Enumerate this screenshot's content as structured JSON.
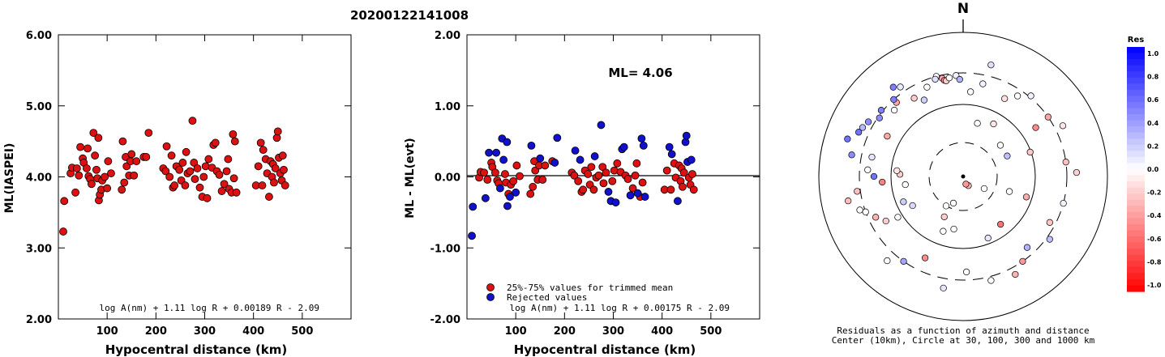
{
  "figure_title": "20200122141008",
  "colors": {
    "red": "#dd1111",
    "blue": "#1111cc",
    "axis": "#000000"
  },
  "chart_data": [
    {
      "type": "scatter",
      "xlabel": "Hypocentral distance (km)",
      "ylabel": "ML(IASPEI)",
      "xlim": [
        0,
        600
      ],
      "ylim": [
        2.0,
        6.0
      ],
      "yticks": [
        "2.00",
        "3.00",
        "4.00",
        "5.00",
        "6.00"
      ],
      "xticks": [
        "100",
        "200",
        "300",
        "400",
        "500"
      ],
      "formula": "log A(nm) + 1.11 log R + 0.00189 R - 2.09",
      "points": [
        [
          10,
          3.23
        ],
        [
          12,
          3.66
        ],
        [
          25,
          4.05
        ],
        [
          28,
          4.13
        ],
        [
          35,
          3.78
        ],
        [
          38,
          4.12
        ],
        [
          42,
          4.02
        ],
        [
          45,
          4.42
        ],
        [
          50,
          4.26
        ],
        [
          52,
          4.2
        ],
        [
          58,
          4.12
        ],
        [
          60,
          4.4
        ],
        [
          62,
          4.01
        ],
        [
          65,
          3.97
        ],
        [
          68,
          3.9
        ],
        [
          72,
          4.62
        ],
        [
          75,
          4.3
        ],
        [
          78,
          4.1
        ],
        [
          80,
          3.98
        ],
        [
          82,
          4.55
        ],
        [
          83,
          3.67
        ],
        [
          85,
          3.75
        ],
        [
          88,
          3.82
        ],
        [
          90,
          3.95
        ],
        [
          95,
          4.0
        ],
        [
          100,
          3.84
        ],
        [
          102,
          4.22
        ],
        [
          108,
          4.05
        ],
        [
          130,
          3.82
        ],
        [
          132,
          4.5
        ],
        [
          135,
          3.92
        ],
        [
          138,
          4.28
        ],
        [
          140,
          4.15
        ],
        [
          145,
          4.02
        ],
        [
          148,
          4.22
        ],
        [
          150,
          4.32
        ],
        [
          155,
          4.02
        ],
        [
          160,
          4.22
        ],
        [
          175,
          4.28
        ],
        [
          180,
          4.28
        ],
        [
          185,
          4.62
        ],
        [
          215,
          4.12
        ],
        [
          220,
          4.08
        ],
        [
          222,
          4.43
        ],
        [
          228,
          4.0
        ],
        [
          232,
          4.3
        ],
        [
          235,
          3.85
        ],
        [
          238,
          3.88
        ],
        [
          242,
          4.15
        ],
        [
          248,
          4.1
        ],
        [
          252,
          3.95
        ],
        [
          255,
          4.2
        ],
        [
          260,
          3.88
        ],
        [
          262,
          4.35
        ],
        [
          265,
          4.05
        ],
        [
          270,
          4.08
        ],
        [
          275,
          4.79
        ],
        [
          278,
          4.2
        ],
        [
          280,
          3.97
        ],
        [
          285,
          4.12
        ],
        [
          290,
          3.85
        ],
        [
          295,
          3.72
        ],
        [
          298,
          4.0
        ],
        [
          302,
          4.15
        ],
        [
          305,
          3.7
        ],
        [
          308,
          4.25
        ],
        [
          315,
          4.13
        ],
        [
          318,
          4.45
        ],
        [
          322,
          4.48
        ],
        [
          325,
          4.08
        ],
        [
          330,
          4.03
        ],
        [
          335,
          3.8
        ],
        [
          340,
          3.9
        ],
        [
          345,
          4.08
        ],
        [
          348,
          4.25
        ],
        [
          350,
          3.83
        ],
        [
          355,
          3.78
        ],
        [
          358,
          4.6
        ],
        [
          360,
          3.98
        ],
        [
          362,
          4.5
        ],
        [
          365,
          3.78
        ],
        [
          405,
          3.88
        ],
        [
          410,
          4.15
        ],
        [
          415,
          4.48
        ],
        [
          418,
          3.88
        ],
        [
          420,
          4.38
        ],
        [
          425,
          4.25
        ],
        [
          428,
          4.05
        ],
        [
          432,
          3.72
        ],
        [
          435,
          4.22
        ],
        [
          438,
          4.0
        ],
        [
          440,
          4.18
        ],
        [
          442,
          3.92
        ],
        [
          445,
          4.12
        ],
        [
          448,
          4.55
        ],
        [
          450,
          4.64
        ],
        [
          452,
          4.27
        ],
        [
          455,
          4.05
        ],
        [
          458,
          3.95
        ],
        [
          460,
          4.3
        ],
        [
          462,
          4.1
        ],
        [
          465,
          3.88
        ]
      ]
    },
    {
      "type": "scatter",
      "xlabel": "Hypocentral distance (km)",
      "ylabel": "ML - ML(evt)",
      "xlim": [
        0,
        600
      ],
      "ylim": [
        -2.0,
        2.0
      ],
      "yticks": [
        "-2.00",
        "-1.00",
        "0.00",
        "1.00",
        "2.00"
      ],
      "xticks": [
        "100",
        "200",
        "300",
        "400",
        "500"
      ],
      "annotation": "ML= 4.06",
      "formula": "log A(nm) + 1.11 log R + 0.00175 R - 2.09",
      "legend": [
        "25%-75% values for trimmed mean",
        "Rejected values"
      ],
      "series": [
        {
          "name": "25%-75% values for trimmed mean",
          "color_key": "red",
          "points": [
            [
              25,
              -0.01
            ],
            [
              28,
              0.07
            ],
            [
              35,
              0.06
            ],
            [
              42,
              -0.04
            ],
            [
              50,
              0.2
            ],
            [
              52,
              0.14
            ],
            [
              58,
              0.06
            ],
            [
              62,
              -0.05
            ],
            [
              65,
              -0.09
            ],
            [
              78,
              0.04
            ],
            [
              80,
              -0.08
            ],
            [
              85,
              -0.24
            ],
            [
              90,
              -0.11
            ],
            [
              95,
              -0.06
            ],
            [
              102,
              0.16
            ],
            [
              108,
              0.01
            ],
            [
              130,
              -0.24
            ],
            [
              135,
              -0.14
            ],
            [
              138,
              0.22
            ],
            [
              140,
              0.09
            ],
            [
              145,
              -0.04
            ],
            [
              148,
              0.16
            ],
            [
              155,
              -0.04
            ],
            [
              160,
              0.16
            ],
            [
              175,
              0.22
            ],
            [
              215,
              0.06
            ],
            [
              220,
              0.02
            ],
            [
              228,
              -0.06
            ],
            [
              235,
              -0.21
            ],
            [
              238,
              -0.18
            ],
            [
              242,
              0.09
            ],
            [
              248,
              0.04
            ],
            [
              252,
              -0.11
            ],
            [
              255,
              0.14
            ],
            [
              260,
              -0.18
            ],
            [
              265,
              -0.01
            ],
            [
              270,
              0.02
            ],
            [
              278,
              0.14
            ],
            [
              280,
              -0.09
            ],
            [
              285,
              0.06
            ],
            [
              298,
              -0.06
            ],
            [
              302,
              0.09
            ],
            [
              308,
              0.19
            ],
            [
              315,
              0.07
            ],
            [
              325,
              0.02
            ],
            [
              330,
              -0.03
            ],
            [
              340,
              -0.16
            ],
            [
              345,
              0.02
            ],
            [
              348,
              0.19
            ],
            [
              355,
              -0.28
            ],
            [
              360,
              -0.08
            ],
            [
              405,
              -0.18
            ],
            [
              410,
              0.09
            ],
            [
              418,
              -0.18
            ],
            [
              425,
              0.19
            ],
            [
              428,
              -0.01
            ],
            [
              435,
              0.16
            ],
            [
              438,
              -0.06
            ],
            [
              440,
              0.12
            ],
            [
              442,
              -0.14
            ],
            [
              445,
              0.06
            ],
            [
              455,
              -0.01
            ],
            [
              458,
              -0.11
            ],
            [
              462,
              0.04
            ],
            [
              465,
              -0.18
            ]
          ]
        },
        {
          "name": "Rejected values",
          "color_key": "blue",
          "points": [
            [
              10,
              -0.83
            ],
            [
              12,
              -0.42
            ],
            [
              38,
              -0.3
            ],
            [
              45,
              0.34
            ],
            [
              60,
              0.34
            ],
            [
              68,
              -0.16
            ],
            [
              72,
              0.54
            ],
            [
              75,
              0.24
            ],
            [
              82,
              0.49
            ],
            [
              83,
              -0.41
            ],
            [
              88,
              -0.28
            ],
            [
              100,
              -0.22
            ],
            [
              132,
              0.44
            ],
            [
              150,
              0.26
            ],
            [
              180,
              0.2
            ],
            [
              185,
              0.55
            ],
            [
              222,
              0.37
            ],
            [
              232,
              0.24
            ],
            [
              262,
              0.29
            ],
            [
              275,
              0.73
            ],
            [
              290,
              -0.21
            ],
            [
              295,
              -0.34
            ],
            [
              305,
              -0.36
            ],
            [
              318,
              0.39
            ],
            [
              322,
              0.42
            ],
            [
              335,
              -0.26
            ],
            [
              350,
              -0.23
            ],
            [
              358,
              0.54
            ],
            [
              362,
              0.44
            ],
            [
              365,
              -0.28
            ],
            [
              415,
              0.42
            ],
            [
              420,
              0.32
            ],
            [
              432,
              -0.34
            ],
            [
              448,
              0.49
            ],
            [
              450,
              0.58
            ],
            [
              452,
              0.21
            ],
            [
              460,
              0.24
            ]
          ]
        }
      ]
    },
    {
      "type": "polar-scatter",
      "north_label": "N",
      "legend_title": "Res",
      "colorbar_range": [
        -1.0,
        1.0
      ],
      "colorbar_ticks": [
        "1.0",
        "0.8",
        "0.6",
        "0.4",
        "0.2",
        "0.0",
        "-0.2",
        "-0.4",
        "-0.6",
        "-0.8",
        "-1.0"
      ],
      "caption": [
        "Residuals as a function of azimuth and distance",
        "Center (10km), Circle at 30, 100, 300 and 1000 km"
      ],
      "stations": [
        [
          5,
          105,
          0.0
        ],
        [
          14,
          142,
          0.12
        ],
        [
          40,
          130,
          0.05
        ],
        [
          56,
          108,
          -0.45
        ],
        [
          70,
          88,
          -0.22
        ],
        [
          108,
          82,
          -0.32
        ],
        [
          142,
          75,
          -0.55
        ],
        [
          158,
          82,
          0.1
        ],
        [
          200,
          72,
          0.0
        ],
        [
          215,
          128,
          0.35
        ],
        [
          222,
          140,
          0.0
        ],
        [
          250,
          128,
          0.0
        ],
        [
          262,
          132,
          -0.25
        ],
        [
          282,
          115,
          0.1
        ],
        [
          298,
          106,
          -0.35
        ],
        [
          318,
          123,
          -0.35
        ],
        [
          325,
          135,
          0.08
        ],
        [
          345,
          128,
          0.0
        ],
        [
          12,
          117,
          0.05
        ],
        [
          28,
          109,
          -0.12
        ],
        [
          34,
          120,
          0.0
        ],
        [
          55,
          128,
          -0.35
        ],
        [
          63,
          138,
          -0.1
        ],
        [
          82,
          128,
          -0.25
        ],
        [
          88,
          140,
          -0.18
        ],
        [
          105,
          128,
          0.05
        ],
        [
          118,
          121,
          -0.22
        ],
        [
          126,
          132,
          0.25
        ],
        [
          138,
          118,
          0.3
        ],
        [
          145,
          128,
          -0.4
        ],
        [
          152,
          137,
          -0.3
        ],
        [
          165,
          133,
          0.0
        ],
        [
          178,
          118,
          0.0
        ],
        [
          190,
          140,
          0.1
        ],
        [
          205,
          111,
          -0.45
        ],
        [
          238,
          95,
          0.0
        ],
        [
          245,
          119,
          -0.3
        ],
        [
          252,
          134,
          0.0
        ],
        [
          258,
          145,
          -0.25
        ],
        [
          266,
          100,
          -0.5
        ],
        [
          270,
          110,
          0.55
        ],
        [
          274,
          118,
          0.0
        ],
        [
          281,
          140,
          0.45
        ],
        [
          288,
          150,
          0.55
        ],
        [
          293,
          140,
          0.55
        ],
        [
          296,
          138,
          0.28
        ],
        [
          300,
          135,
          0.45
        ],
        [
          305,
          126,
          0.45
        ],
        [
          309,
          130,
          0.5
        ],
        [
          314,
          118,
          0.0
        ],
        [
          318,
          128,
          0.5
        ],
        [
          322,
          140,
          0.5
        ],
        [
          328,
          114,
          -0.2
        ],
        [
          333,
          106,
          0.18
        ],
        [
          338,
          119,
          0.0
        ],
        [
          344,
          125,
          0.12
        ],
        [
          348,
          124,
          -0.35
        ],
        [
          349,
          121,
          -0.45
        ],
        [
          350,
          120,
          -0.2
        ],
        [
          352,
          123,
          0.0
        ],
        [
          356,
          125,
          0.05
        ],
        [
          358,
          120,
          0.3
        ],
        [
          50,
          60,
          0.0
        ],
        [
          65,
          60,
          0.25
        ],
        [
          120,
          30,
          0.0
        ],
        [
          200,
          35,
          0.0
        ],
        [
          210,
          42,
          0.0
        ],
        [
          190,
          66,
          0.0
        ],
        [
          205,
          55,
          -0.2
        ],
        [
          15,
          68,
          0.0
        ],
        [
          30,
          75,
          -0.1
        ],
        [
          108,
          60,
          0.0
        ],
        [
          150,
          13,
          -0.3
        ],
        [
          160,
          10,
          -0.4
        ],
        [
          272,
          78,
          -0.2
        ],
        [
          275,
          82,
          -0.1
        ],
        [
          262,
          72,
          0.0
        ],
        [
          247,
          80,
          0.2
        ],
        [
          240,
          72,
          0.15
        ],
        [
          240,
          110,
          -0.2
        ]
      ]
    }
  ]
}
